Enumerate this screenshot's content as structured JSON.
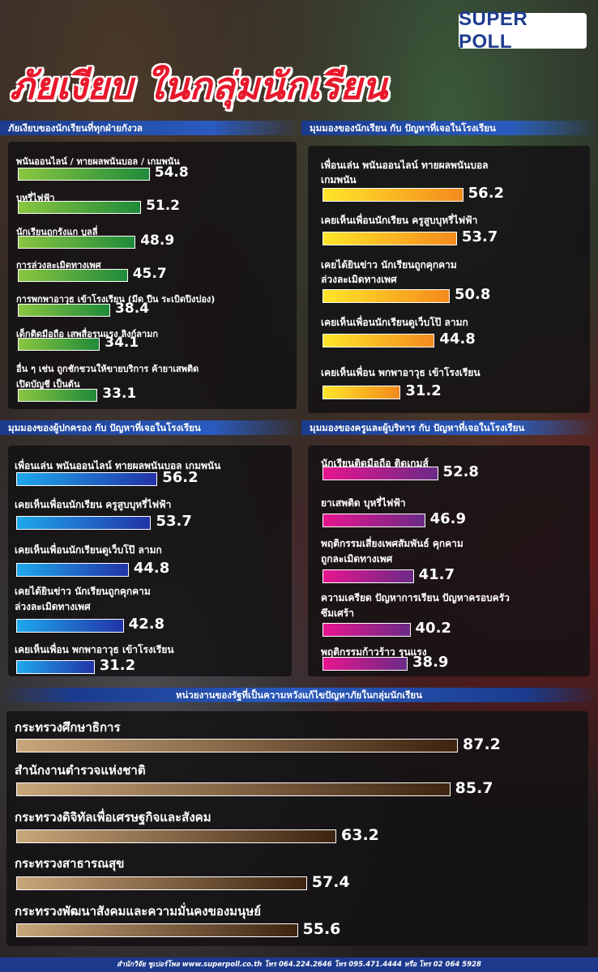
{
  "brand": "SUPER POLL",
  "title": "ภัยเงียบ ในกลุ่มนักเรียน",
  "footer": "สำนักวิจัย ซูเปอร์โพล www.superpoll.co.th โทร 064.224.2646 โทร 095.471.4444 หรือ โทร 02 064 5928",
  "chart_data": [
    {
      "type": "bar",
      "title": "ภัยเงียบของนักเรียนที่ทุกฝ่ายกังวล",
      "categories": [
        "พนันออนไลน์ / ทายผลพนันบอล / เกมพนัน",
        "บุหรี่ไฟฟ้า",
        "นักเรียนถูกรังแก บูลลี่",
        "การล่วงละเมิดทางเพศ",
        "การพกพาอาวุธ เข้าโรงเรียน (มีด ปืน ระเบิดปิงปอง)",
        "เด็กติดมือถือ เสพสื่อรุนแรง ลิงก์ลามก",
        "อื่น ๆ เช่น ถูกชักชวนให้ขายบริการ ค้ายาเสพติด|เปิดบัญชี เป็นต้น"
      ],
      "values": [
        54.8,
        51.2,
        48.9,
        45.7,
        38.4,
        34.1,
        33.1
      ],
      "value_labels": [
        "54.8",
        "51.2",
        "48.9",
        "45.7",
        "38.4",
        "34.1",
        "33.1"
      ],
      "color": "#4ea83a"
    },
    {
      "type": "bar",
      "title": "มุมมองของนักเรียน กับ ปัญหาที่เจอในโรงเรียน",
      "categories": [
        "เพื่อนเล่น พนันออนไลน์ ทายผลพนันบอล|เกมพนัน",
        "เคยเห็นเพื่อนนักเรียน ครูสูบบุหรี่ไฟฟ้า",
        "เคยได้ยินข่าว นักเรียนถูกคุกคาม|ล่วงละเมิดทางเพศ",
        "เคยเห็นเพื่อนนักเรียนดูเว็บโป๊ ลามก",
        "เคยเห็นเพื่อน พกพาอาวุธ เข้าโรงเรียน"
      ],
      "values": [
        56.2,
        53.7,
        50.8,
        44.8,
        31.2
      ],
      "value_labels": [
        "56.2",
        "53.7",
        "50.8",
        "44.8",
        "31.2"
      ],
      "color": "#f7b52a"
    },
    {
      "type": "bar",
      "title": "มุมมองของผู้ปกครอง กับ ปัญหาที่เจอในโรงเรียน",
      "categories": [
        "เพื่อนเล่น พนันออนไลน์ ทายผลพนันบอล เกมพนัน",
        "เคยเห็นเพื่อนนักเรียน ครูสูบบุหรี่ไฟฟ้า",
        "เคยเห็นเพื่อนนักเรียนดูเว็บโป๊ ลามก",
        "เคยได้ยินข่าว นักเรียนถูกคุกคาม|ล่วงละเมิดทางเพศ",
        "เคยเห็นเพื่อน พกพาอาวุธ เข้าโรงเรียน"
      ],
      "values": [
        56.2,
        53.7,
        44.8,
        42.8,
        31.2
      ],
      "value_labels": [
        "56.2",
        "53.7",
        "44.8",
        "42.8",
        "31.2"
      ],
      "color": "#1e7fd8"
    },
    {
      "type": "bar",
      "title": "มุมมองของครูและผู้บริหาร กับ ปัญหาที่เจอในโรงเรียน",
      "categories": [
        "นักเรียนติดมือถือ ติดเกมส์",
        "ยาเสพติด บุหรี่ไฟฟ้า",
        "พฤติกรรมเสี่ยงเพศสัมพันธ์ คุกคาม|ถูกละเมิดทางเพศ",
        "ความเครียด ปัญหาการเรียน ปัญหาครอบครัว|ซึมเศร้า",
        "พฤติกรรมก้าวร้าว รุนแรง"
      ],
      "values": [
        52.8,
        46.9,
        41.7,
        40.2,
        38.9
      ],
      "value_labels": [
        "52.8",
        "46.9",
        "41.7",
        "40.2",
        "38.9"
      ],
      "color": "#c0208f"
    },
    {
      "type": "bar",
      "title": "หน่วยงานของรัฐที่เป็นความหวังแก้ไขปัญหาภัยในกลุ่มนักเรียน",
      "categories": [
        "กระทรวงศึกษาธิการ",
        "สำนักงานตำรวจแห่งชาติ",
        "กระทรวงดิจิทัลเพื่อเศรษฐกิจและสังคม",
        "กระทรวงสาธารณสุข",
        "กระทรวงพัฒนาสังคมและความมั่นคงของมนุษย์"
      ],
      "values": [
        87.2,
        85.7,
        63.2,
        57.4,
        55.6
      ],
      "value_labels": [
        "87.2",
        "85.7",
        "63.2",
        "57.4",
        "55.6"
      ],
      "color": "#8a6440"
    }
  ]
}
